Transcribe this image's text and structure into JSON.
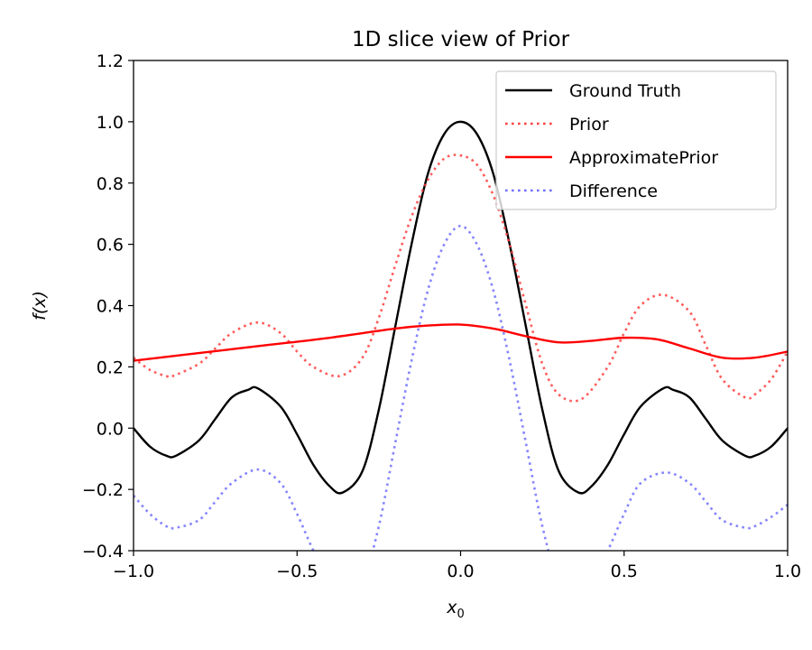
{
  "chart_data": {
    "type": "line",
    "title": "1D slice view of Prior",
    "xlabel_base": "x",
    "xlabel_sub": "0",
    "ylabel": "f(x)",
    "xlim": [
      -1.0,
      1.0
    ],
    "ylim": [
      -0.4,
      1.2
    ],
    "grid": false,
    "legend_position": "upper right",
    "x_ticks": [
      -1.0,
      -0.5,
      0.0,
      0.5,
      1.0
    ],
    "x_tick_labels": [
      "−1.0",
      "−0.5",
      "0.0",
      "0.5",
      "1.0"
    ],
    "y_ticks": [
      -0.4,
      -0.2,
      0.0,
      0.2,
      0.4,
      0.6,
      0.8,
      1.0,
      1.2
    ],
    "y_tick_labels": [
      "−0.4",
      "−0.2",
      "0.0",
      "0.2",
      "0.4",
      "0.6",
      "0.8",
      "1.0",
      "1.2"
    ],
    "series": [
      {
        "name": "Ground Truth",
        "color": "#000000",
        "style": "solid",
        "x": [
          -1.0,
          -0.95,
          -0.9,
          -0.87,
          -0.8,
          -0.75,
          -0.7,
          -0.65,
          -0.62,
          -0.55,
          -0.5,
          -0.45,
          -0.4,
          -0.36,
          -0.3,
          -0.25,
          -0.2,
          -0.15,
          -0.1,
          -0.05,
          0.0,
          0.05,
          0.1,
          0.15,
          0.2,
          0.25,
          0.3,
          0.36,
          0.4,
          0.45,
          0.5,
          0.55,
          0.62,
          0.65,
          0.7,
          0.75,
          0.8,
          0.87,
          0.9,
          0.95,
          1.0
        ],
        "y": [
          0.0,
          -0.06,
          -0.09,
          -0.09,
          -0.04,
          0.03,
          0.1,
          0.125,
          0.13,
          0.07,
          -0.02,
          -0.12,
          -0.19,
          -0.21,
          -0.14,
          0.06,
          0.33,
          0.6,
          0.83,
          0.96,
          1.0,
          0.96,
          0.83,
          0.6,
          0.33,
          0.06,
          -0.14,
          -0.21,
          -0.19,
          -0.12,
          -0.02,
          0.07,
          0.13,
          0.125,
          0.1,
          0.03,
          -0.04,
          -0.09,
          -0.09,
          -0.06,
          0.0
        ]
      },
      {
        "name": "Prior",
        "color": "#ff4040",
        "style": "dotted",
        "x": [
          -1.0,
          -0.95,
          -0.9,
          -0.88,
          -0.8,
          -0.75,
          -0.7,
          -0.62,
          -0.55,
          -0.5,
          -0.45,
          -0.37,
          -0.3,
          -0.25,
          -0.2,
          -0.15,
          -0.1,
          -0.05,
          0.0,
          0.05,
          0.1,
          0.15,
          0.2,
          0.25,
          0.3,
          0.37,
          0.45,
          0.5,
          0.55,
          0.62,
          0.7,
          0.75,
          0.8,
          0.87,
          0.9,
          0.95,
          1.0
        ],
        "y": [
          0.23,
          0.19,
          0.17,
          0.17,
          0.21,
          0.26,
          0.31,
          0.345,
          0.31,
          0.25,
          0.2,
          0.17,
          0.23,
          0.36,
          0.53,
          0.69,
          0.81,
          0.88,
          0.89,
          0.86,
          0.76,
          0.6,
          0.4,
          0.21,
          0.11,
          0.095,
          0.2,
          0.31,
          0.4,
          0.435,
          0.38,
          0.27,
          0.16,
          0.1,
          0.11,
          0.16,
          0.25
        ]
      },
      {
        "name": "ApproximatePrior",
        "color": "#ff0000",
        "style": "solid",
        "x": [
          -1.0,
          -0.8,
          -0.6,
          -0.4,
          -0.2,
          -0.1,
          0.0,
          0.1,
          0.2,
          0.3,
          0.4,
          0.5,
          0.6,
          0.7,
          0.8,
          0.9,
          1.0
        ],
        "y": [
          0.22,
          0.245,
          0.27,
          0.295,
          0.325,
          0.335,
          0.338,
          0.325,
          0.3,
          0.28,
          0.285,
          0.295,
          0.29,
          0.26,
          0.23,
          0.23,
          0.25
        ]
      },
      {
        "name": "Difference",
        "color": "#7070ff",
        "style": "dotted",
        "x": [
          -1.0,
          -0.95,
          -0.9,
          -0.87,
          -0.8,
          -0.75,
          -0.7,
          -0.62,
          -0.55,
          -0.5,
          -0.45,
          -0.4,
          -0.36,
          -0.3,
          -0.25,
          -0.2,
          -0.15,
          -0.1,
          -0.05,
          0.0,
          0.05,
          0.1,
          0.15,
          0.2,
          0.25,
          0.3,
          0.36,
          0.4,
          0.45,
          0.5,
          0.55,
          0.63,
          0.7,
          0.75,
          0.8,
          0.87,
          0.9,
          0.95,
          1.0
        ],
        "y": [
          -0.22,
          -0.28,
          -0.32,
          -0.325,
          -0.3,
          -0.24,
          -0.18,
          -0.135,
          -0.18,
          -0.28,
          -0.4,
          -0.5,
          -0.55,
          -0.5,
          -0.32,
          -0.05,
          0.22,
          0.45,
          0.6,
          0.66,
          0.6,
          0.45,
          0.22,
          -0.05,
          -0.32,
          -0.5,
          -0.55,
          -0.5,
          -0.4,
          -0.28,
          -0.18,
          -0.145,
          -0.18,
          -0.24,
          -0.3,
          -0.325,
          -0.32,
          -0.29,
          -0.25
        ]
      }
    ]
  }
}
